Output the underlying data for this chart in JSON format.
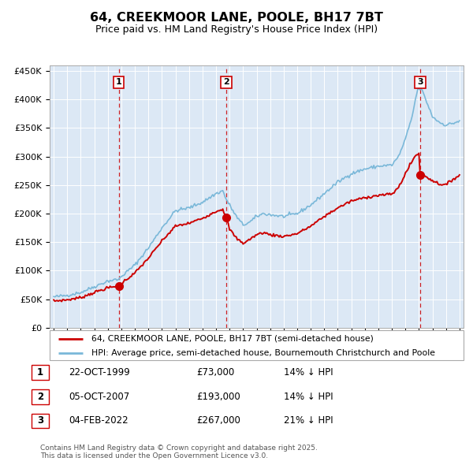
{
  "title": "64, CREEKMOOR LANE, POOLE, BH17 7BT",
  "subtitle": "Price paid vs. HM Land Registry's House Price Index (HPI)",
  "bg_color": "#dce8f5",
  "ylim": [
    0,
    460000
  ],
  "yticks": [
    0,
    50000,
    100000,
    150000,
    200000,
    250000,
    300000,
    350000,
    400000,
    450000
  ],
  "ytick_labels": [
    "£0",
    "£50K",
    "£100K",
    "£150K",
    "£200K",
    "£250K",
    "£300K",
    "£350K",
    "£400K",
    "£450K"
  ],
  "xlim_start": 1994.7,
  "xlim_end": 2025.3,
  "sale_dates": [
    1999.81,
    2007.76,
    2022.09
  ],
  "sale_prices": [
    73000,
    193000,
    267000
  ],
  "sale_labels": [
    "1",
    "2",
    "3"
  ],
  "sale_date_strs": [
    "22-OCT-1999",
    "05-OCT-2007",
    "04-FEB-2022"
  ],
  "sale_price_strs": [
    "£73,000",
    "£193,000",
    "£267,000"
  ],
  "sale_pct_strs": [
    "14% ↓ HPI",
    "14% ↓ HPI",
    "21% ↓ HPI"
  ],
  "red_color": "#cc0000",
  "blue_color": "#7ab8d9",
  "vline_color": "#cc0000",
  "legend_label_red": "64, CREEKMOOR LANE, POOLE, BH17 7BT (semi-detached house)",
  "legend_label_blue": "HPI: Average price, semi-detached house, Bournemouth Christchurch and Poole",
  "footer_text": "Contains HM Land Registry data © Crown copyright and database right 2025.\nThis data is licensed under the Open Government Licence v3.0."
}
